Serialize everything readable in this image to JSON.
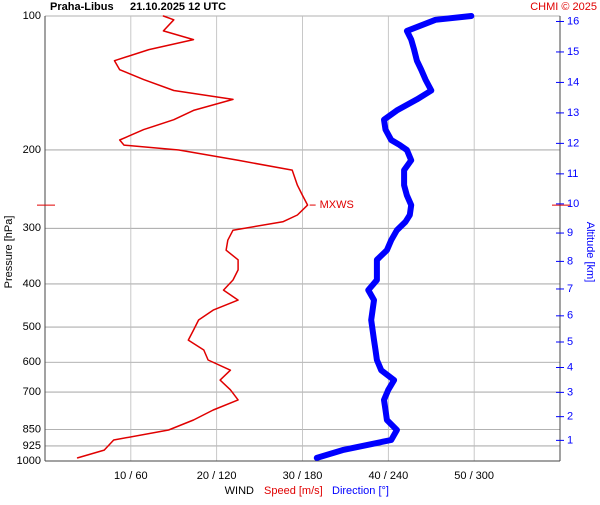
{
  "chart_data": {
    "type": "line",
    "station": "Praha-Libus",
    "time": "21.10.2025 12 UTC",
    "credit": "CHMI © 2025",
    "y_label": "Pressure [hPa]",
    "y2_label": "Altitude [km]",
    "x_label": "WIND",
    "pressure": [
      984,
      945,
      897,
      852,
      809,
      768,
      729,
      692,
      658,
      625,
      593,
      563,
      535,
      508,
      482,
      458,
      435,
      413,
      392,
      372,
      353,
      336,
      319,
      303,
      290,
      280,
      266,
      253,
      240,
      222,
      211,
      200,
      195,
      190,
      180,
      171,
      163,
      154,
      147,
      139,
      132,
      126,
      119,
      113,
      108,
      102,
      100
    ],
    "series": [
      {
        "name": "Speed [m/s]",
        "color": "#e00000",
        "axis": "x",
        "values": [
          3.8,
          6.9,
          8,
          14.4,
          17.3,
          19.6,
          22.5,
          21.6,
          20.4,
          21.6,
          19,
          18.5,
          16.7,
          17.3,
          17.9,
          19.6,
          22.5,
          20.8,
          21.9,
          22.5,
          22.5,
          21.1,
          21.3,
          21.9,
          27.7,
          29.4,
          30.6,
          30,
          29.4,
          28.8,
          22.5,
          15.6,
          9.2,
          8.7,
          11.5,
          15,
          17.3,
          21.9,
          15,
          11.5,
          8.7,
          8.1,
          12.1,
          17.3,
          13.8,
          15,
          13.8
        ]
      },
      {
        "name": "Direction [°]",
        "color": "#0000ff",
        "axis": "x2",
        "values": [
          190,
          208,
          242,
          246,
          239,
          238,
          237,
          240,
          244,
          235,
          232,
          231,
          230,
          229,
          228,
          229,
          230,
          226,
          232,
          232,
          232,
          239,
          242,
          246,
          252,
          255,
          256,
          253,
          251,
          251,
          256,
          253,
          248,
          242,
          238,
          237,
          246,
          260,
          270,
          266,
          263,
          260,
          258,
          256,
          253,
          273,
          298
        ]
      }
    ],
    "ylim": [
      100,
      1000
    ],
    "ylog": true,
    "yticks": [
      100,
      200,
      300,
      400,
      500,
      600,
      700,
      850,
      925,
      1000
    ],
    "xlim": [
      0,
      60
    ],
    "x2lim": [
      0,
      360
    ],
    "xticks": [
      {
        "value": 10,
        "label": "10 / 60"
      },
      {
        "value": 20,
        "label": "20 / 120"
      },
      {
        "value": 30,
        "label": "30 / 180"
      },
      {
        "value": 40,
        "label": "40 / 240"
      },
      {
        "value": 50,
        "label": "50 / 300"
      }
    ],
    "y2ticks": [
      1,
      2,
      3,
      4,
      5,
      6,
      7,
      8,
      9,
      10,
      11,
      12,
      13,
      14,
      15,
      16
    ],
    "annotation": {
      "text": "MXWS",
      "pressure": 266,
      "speed": 30.6
    },
    "grid": true
  }
}
